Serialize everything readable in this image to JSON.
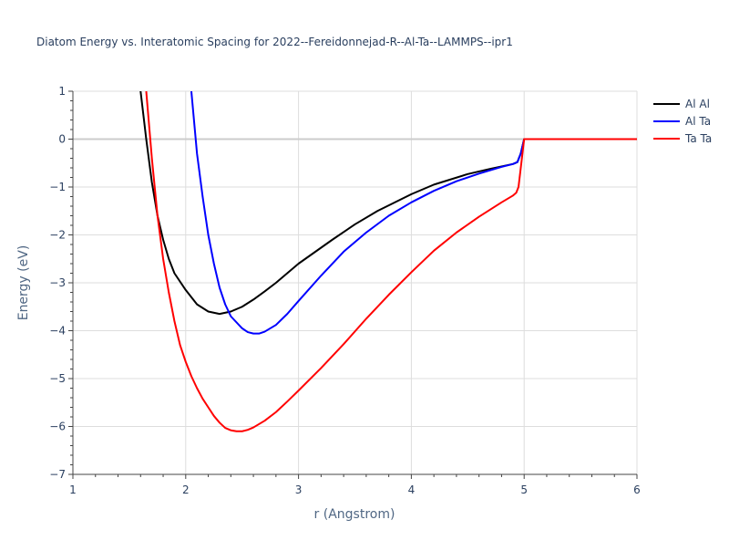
{
  "chart_data": {
    "type": "line",
    "title": "Diatom Energy vs. Interatomic Spacing for 2022--Fereidonnejad-R--Al-Ta--LAMMPS--ipr1",
    "xlabel": "r (Angstrom)",
    "ylabel": "Energy (eV)",
    "xlim": [
      1,
      6
    ],
    "ylim": [
      -7,
      1
    ],
    "xticks": [
      1,
      2,
      3,
      4,
      5,
      6
    ],
    "yticks": [
      1,
      0,
      -1,
      -2,
      -3,
      -4,
      -5,
      -6,
      -7
    ],
    "xtick_labels": [
      "1",
      "2",
      "3",
      "4",
      "5",
      "6"
    ],
    "ytick_labels": [
      "1",
      "0",
      "−1",
      "−2",
      "−3",
      "−4",
      "−5",
      "−6",
      "−7"
    ],
    "grid": true,
    "legend_position": "top-right",
    "series": [
      {
        "name": "Al Al",
        "color": "#000000",
        "x": [
          1.5,
          1.6,
          1.65,
          1.7,
          1.75,
          1.8,
          1.85,
          1.9,
          2.0,
          2.1,
          2.2,
          2.3,
          2.4,
          2.5,
          2.6,
          2.7,
          2.8,
          3.0,
          3.3,
          3.5,
          3.7,
          4.0,
          4.2,
          4.5,
          4.7,
          4.9,
          4.94,
          4.97,
          5.0,
          5.5,
          6.0
        ],
        "y": [
          2.5,
          1.0,
          0.0,
          -0.9,
          -1.6,
          -2.1,
          -2.5,
          -2.8,
          -3.15,
          -3.45,
          -3.6,
          -3.65,
          -3.6,
          -3.5,
          -3.35,
          -3.18,
          -3.0,
          -2.6,
          -2.1,
          -1.78,
          -1.5,
          -1.15,
          -0.95,
          -0.73,
          -0.62,
          -0.52,
          -0.48,
          -0.3,
          0.0,
          0.0,
          0.0
        ]
      },
      {
        "name": "Al Ta",
        "color": "#0000ff",
        "x": [
          2.05,
          2.1,
          2.15,
          2.2,
          2.25,
          2.3,
          2.35,
          2.4,
          2.5,
          2.55,
          2.6,
          2.65,
          2.7,
          2.8,
          2.9,
          3.0,
          3.2,
          3.4,
          3.6,
          3.8,
          4.0,
          4.2,
          4.4,
          4.6,
          4.8,
          4.9,
          4.94,
          4.97,
          5.0,
          5.5,
          6.0
        ],
        "y": [
          1.0,
          -0.3,
          -1.2,
          -2.0,
          -2.6,
          -3.1,
          -3.45,
          -3.7,
          -3.95,
          -4.03,
          -4.06,
          -4.06,
          -4.02,
          -3.88,
          -3.65,
          -3.38,
          -2.85,
          -2.35,
          -1.95,
          -1.6,
          -1.32,
          -1.08,
          -0.88,
          -0.72,
          -0.58,
          -0.52,
          -0.48,
          -0.3,
          0.0,
          0.0,
          0.0
        ]
      },
      {
        "name": "Ta Ta",
        "color": "#ff0000",
        "x": [
          1.65,
          1.7,
          1.75,
          1.8,
          1.85,
          1.9,
          1.95,
          2.0,
          2.05,
          2.1,
          2.15,
          2.2,
          2.25,
          2.3,
          2.35,
          2.4,
          2.45,
          2.5,
          2.55,
          2.6,
          2.7,
          2.8,
          2.9,
          3.0,
          3.2,
          3.4,
          3.6,
          3.8,
          4.0,
          4.2,
          4.4,
          4.6,
          4.8,
          4.9,
          4.93,
          4.95,
          4.97,
          5.0,
          5.5,
          6.0
        ],
        "y": [
          1.0,
          -0.4,
          -1.6,
          -2.5,
          -3.2,
          -3.8,
          -4.3,
          -4.65,
          -4.95,
          -5.2,
          -5.42,
          -5.6,
          -5.78,
          -5.92,
          -6.03,
          -6.08,
          -6.1,
          -6.1,
          -6.07,
          -6.02,
          -5.88,
          -5.7,
          -5.48,
          -5.25,
          -4.78,
          -4.28,
          -3.75,
          -3.25,
          -2.78,
          -2.33,
          -1.95,
          -1.62,
          -1.32,
          -1.18,
          -1.12,
          -1.0,
          -0.6,
          0.0,
          0.0,
          0.0
        ]
      }
    ]
  }
}
